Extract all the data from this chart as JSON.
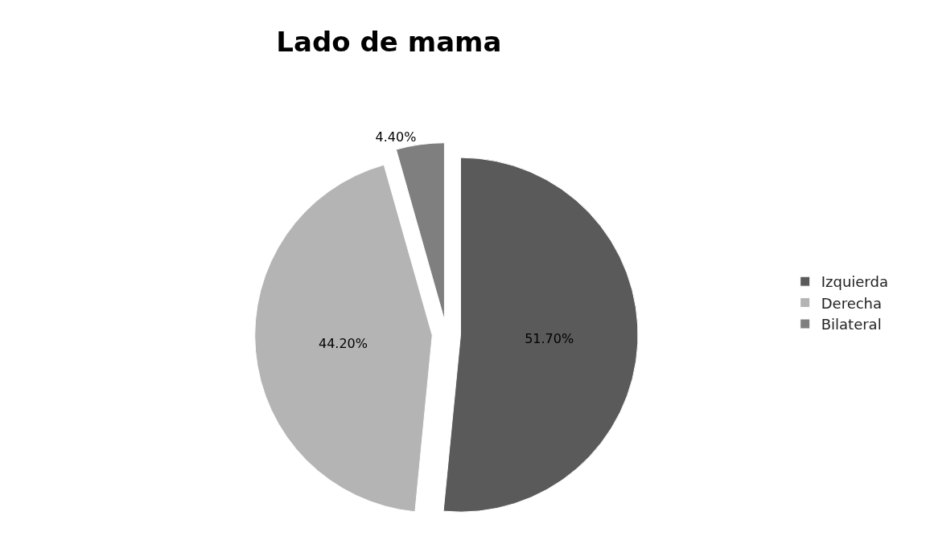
{
  "chart_data": {
    "type": "pie",
    "title": "Lado de mama",
    "categories": [
      "Izquierda",
      "Derecha",
      "Bilateral"
    ],
    "values": [
      51.7,
      44.2,
      4.4
    ],
    "value_labels": [
      "51.70%",
      "44.20%",
      "4.40%"
    ],
    "colors": [
      "#5a5a5a",
      "#b4b4b4",
      "#7f7f7f"
    ],
    "legend": "right"
  }
}
